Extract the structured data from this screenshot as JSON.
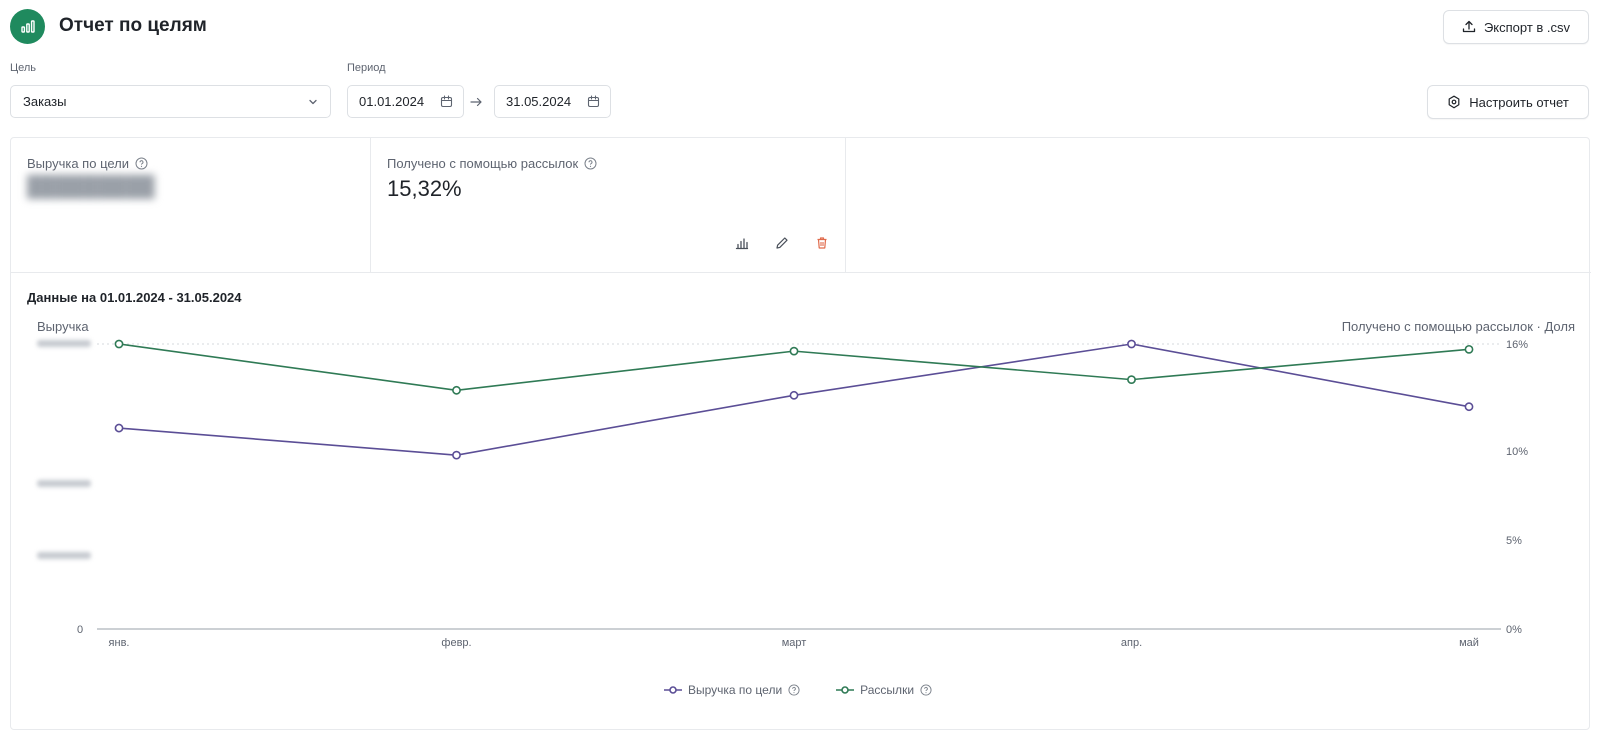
{
  "header": {
    "title": "Отчет по целям",
    "export_label": "Экспорт в .csv",
    "configure_label": "Настроить отчет"
  },
  "filters": {
    "goal_label": "Цель",
    "goal_value": "Заказы",
    "period_label": "Период",
    "date_from": "01.01.2024",
    "date_to": "31.05.2024"
  },
  "kpis": [
    {
      "label": "Выручка по цели",
      "value": ""
    },
    {
      "label": "Получено с помощью рассылок",
      "value": "15,32%"
    }
  ],
  "chart_header": {
    "title": "Данные на 01.01.2024 - 31.05.2024",
    "left_axis_title": "Выручка",
    "right_axis_title": "Получено с помощью рассылок · Доля"
  },
  "colors": {
    "brand": "#1f8a5e",
    "revenue_line": "#5b4e96",
    "mailing_line": "#2f7a55",
    "delete": "#e06a4b"
  },
  "chart_data": {
    "type": "line",
    "categories": [
      "янв.",
      "февр.",
      "март",
      "апр.",
      "май"
    ],
    "series": [
      {
        "name": "Выручка по цели",
        "axis": "left",
        "values": [
          0.705,
          0.61,
          0.82,
          1.0,
          0.78
        ]
      },
      {
        "name": "Рассылки",
        "axis": "right",
        "values": [
          16.0,
          13.4,
          15.6,
          14.0,
          15.7
        ]
      }
    ],
    "left_axis": {
      "ylim": [
        0,
        1
      ],
      "ticks": [
        "",
        "",
        "",
        "0"
      ]
    },
    "right_axis": {
      "ylim": [
        0,
        16
      ],
      "ticks": [
        "16%",
        "10%",
        "5%",
        "0%"
      ],
      "tick_values": [
        16,
        10,
        5,
        0
      ]
    },
    "legend": [
      "Выручка по цели",
      "Рассылки"
    ],
    "legend_position": "bottom",
    "grid": "dashed-top"
  }
}
